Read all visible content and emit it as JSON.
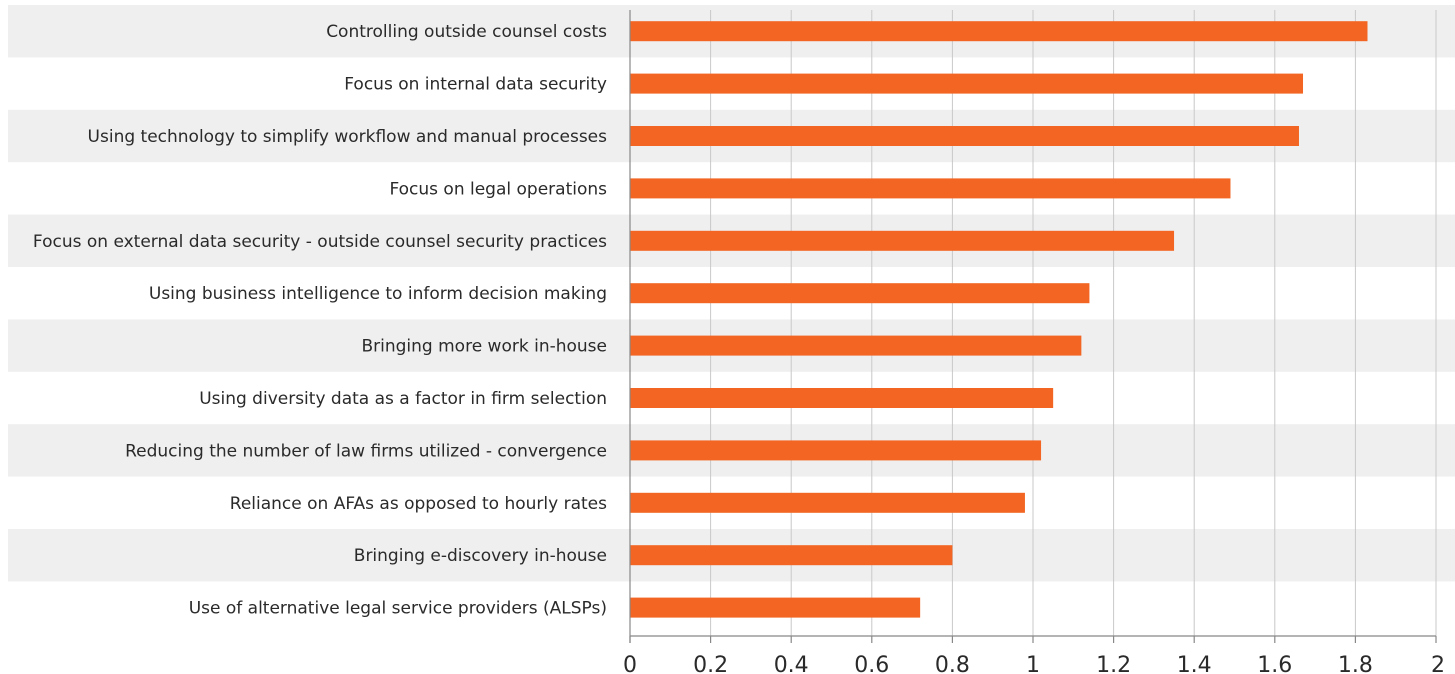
{
  "chart_data": {
    "type": "bar",
    "orientation": "horizontal",
    "title": "",
    "xlabel": "",
    "ylabel": "",
    "categories": [
      "Controlling outside counsel costs",
      "Focus on internal data security",
      "Using technology to simplify workflow and manual processes",
      "Focus on legal operations",
      "Focus on external data security - outside counsel security practices",
      "Using business intelligence to inform decision making",
      "Bringing more work in-house",
      "Using diversity data as a factor in firm selection",
      "Reducing the number of law firms utilized - convergence",
      "Reliance on AFAs as opposed to hourly rates",
      "Bringing e-discovery in-house",
      "Use of alternative legal service providers (ALSPs)"
    ],
    "values": [
      1.83,
      1.67,
      1.66,
      1.49,
      1.35,
      1.14,
      1.12,
      1.05,
      1.02,
      0.98,
      0.8,
      0.72
    ],
    "xlim": [
      0,
      2
    ],
    "ticks": [
      "0",
      "0.2",
      "0.4",
      "0.6",
      "0.8",
      "1",
      "1.2",
      "1.4",
      "1.6",
      "1.8",
      "2"
    ],
    "tick_values": [
      0,
      0.2,
      0.4,
      0.6,
      0.8,
      1,
      1.2,
      1.4,
      1.6,
      1.8,
      2
    ],
    "grid": "vertical",
    "legend": "none",
    "bar_color": "#f26522",
    "band_color": "#efefef",
    "grid_color": "#c8c8c8",
    "axis_color": "#888888",
    "text_color": "#2a2a2a"
  }
}
